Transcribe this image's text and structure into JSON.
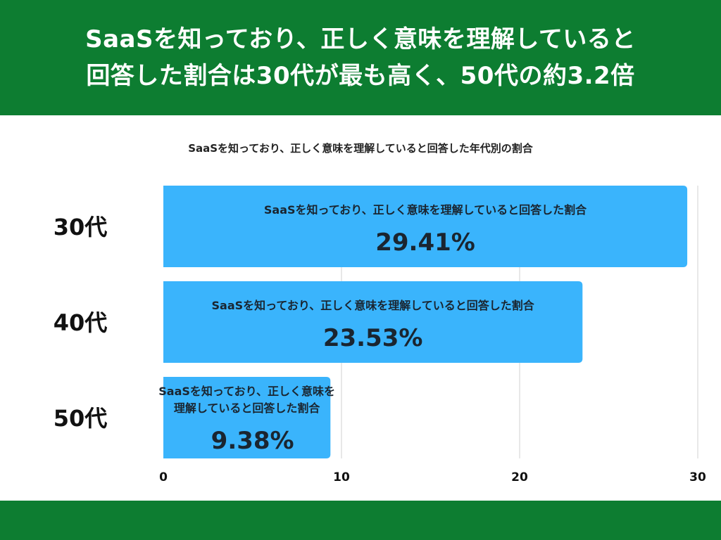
{
  "header": {
    "title_line1": "SaaSを知っており、正しく意味を理解していると",
    "title_line2": "回答した割合は30代が最も高く、50代の約3.2倍"
  },
  "colors": {
    "banner": "#0d7d31",
    "bar": "#3ab4fc",
    "grid": "#d9d9d9"
  },
  "chart_data": {
    "type": "bar",
    "orientation": "horizontal",
    "title": "SaaSを知っており、正しく意味を理解していると回答した年代別の割合",
    "categories": [
      "30代",
      "40代",
      "50代"
    ],
    "series": [
      {
        "name": "SaaSを知っており、正しく意味を理解していると回答した割合",
        "values": [
          29.41,
          23.53,
          9.38
        ],
        "value_labels": [
          "29.41%",
          "23.53%",
          "9.38%"
        ]
      }
    ],
    "xlim": [
      0,
      30
    ],
    "xticks": [
      "0",
      "10",
      "20",
      "30"
    ],
    "grid": true,
    "legend": "none",
    "bar_label_lines": [
      [
        "SaaSを知っており、正しく意味を理解していると回答した割合"
      ],
      [
        "SaaSを知っており、正しく意味を理解していると回答した割合"
      ],
      [
        "SaaSを知っており、正しく意味を",
        "理解していると回答した割合"
      ]
    ]
  }
}
